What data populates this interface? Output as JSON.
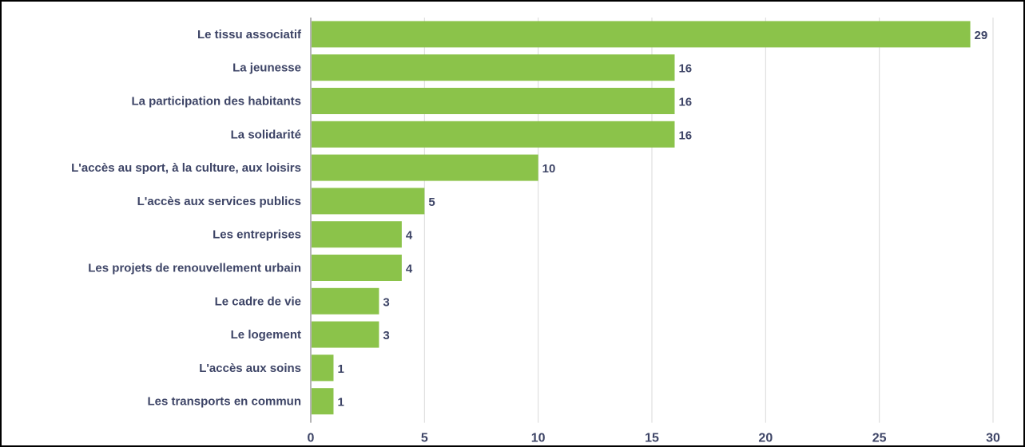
{
  "chart_data": {
    "type": "bar",
    "orientation": "horizontal",
    "title": "",
    "xlabel": "",
    "ylabel": "",
    "categories": [
      "Le tissu associatif",
      "La jeunesse",
      "La participation des habitants",
      "La solidarité",
      "L'accès au sport, à la culture, aux loisirs",
      "L'accès aux services publics",
      "Les entreprises",
      "Les projets de renouvellement urbain",
      "Le cadre de vie",
      "Le logement",
      "L'accès aux soins",
      "Les transports en commun"
    ],
    "values": [
      29,
      16,
      16,
      16,
      10,
      5,
      4,
      4,
      3,
      3,
      1,
      1
    ],
    "xlim": [
      0,
      30
    ],
    "xticks": [
      0,
      5,
      10,
      15,
      20,
      25,
      30
    ],
    "grid": "vertical",
    "legend": "none",
    "bar_color": "#8bc34a",
    "label_color": "#3d4466",
    "grid_color": "#d9d9d9",
    "axis_color": "#9e9e9e"
  }
}
